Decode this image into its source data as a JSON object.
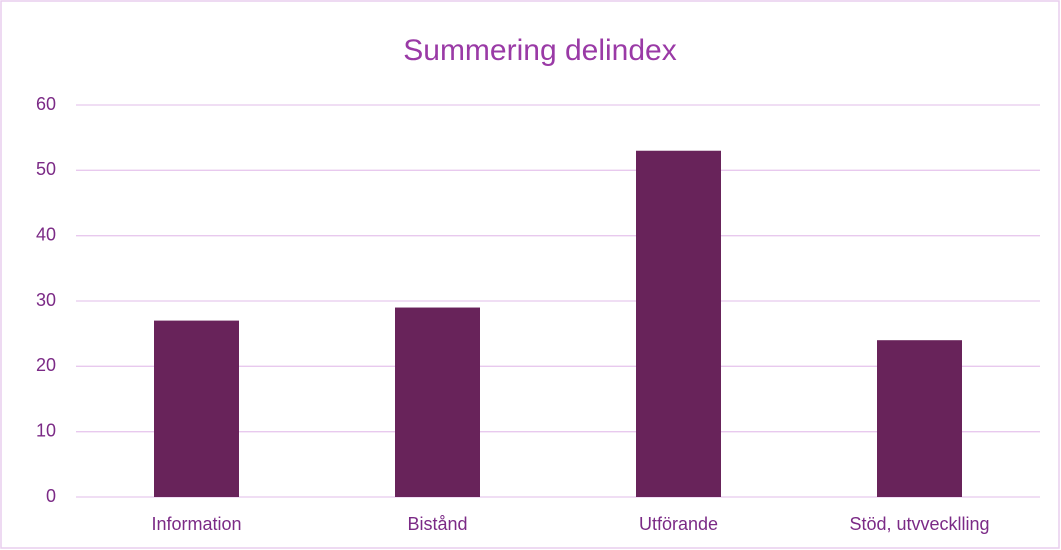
{
  "chart_data": {
    "type": "bar",
    "title": "Summering delindex",
    "categories": [
      "Information",
      "Bistånd",
      "Utförande",
      "Stöd, utvvecklling"
    ],
    "values": [
      27,
      29,
      53,
      24
    ],
    "color": "#68235a",
    "ylim": [
      0,
      60
    ],
    "yticks": [
      0,
      10,
      20,
      30,
      40,
      50,
      60
    ],
    "grid": true
  }
}
